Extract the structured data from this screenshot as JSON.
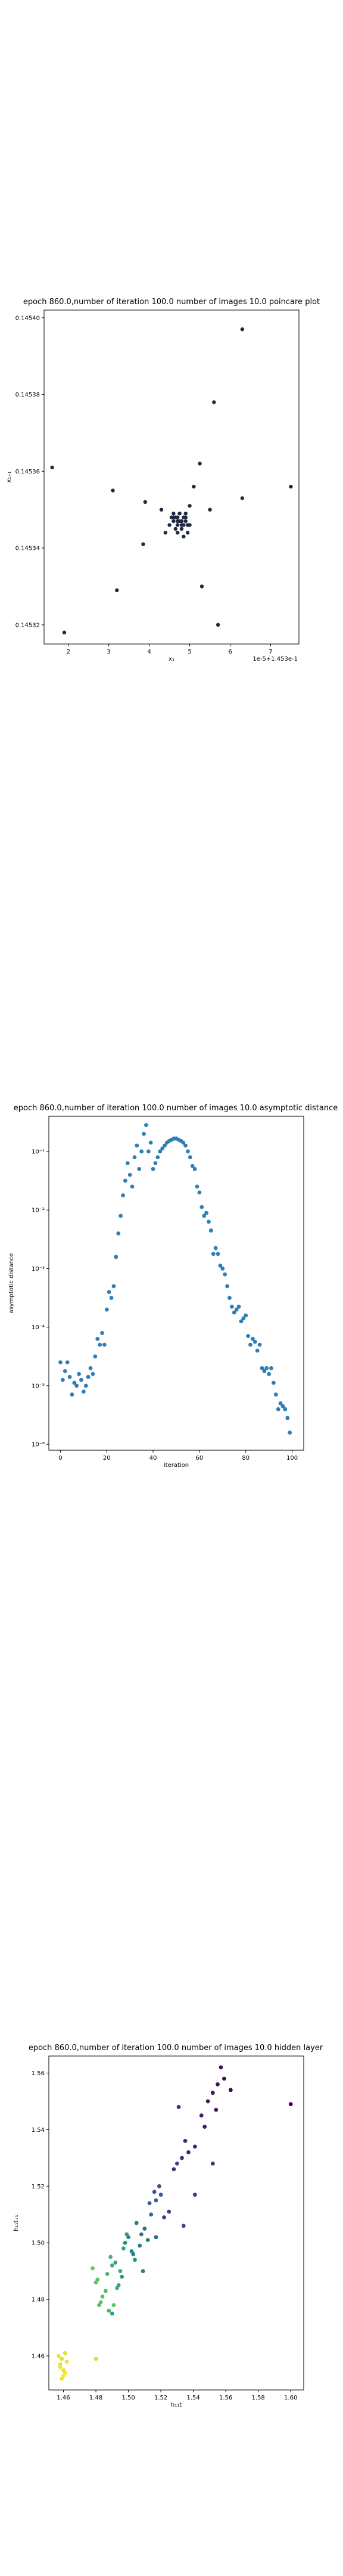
{
  "chart_data": [
    {
      "type": "scatter",
      "title": "epoch 860.0,number of iteration 100.0 number of images 10.0 poincare plot",
      "xlabel": "x₁",
      "ylabel": "x₁₊₁",
      "offset_label": "1e-5+1.453e-1",
      "xticks": [
        "2",
        "3",
        "4",
        "5",
        "6",
        "7"
      ],
      "yticks": [
        "0.14540",
        "0.14538",
        "0.14536",
        "0.14534",
        "0.14532"
      ],
      "xlim": [
        1.4,
        7.7
      ],
      "ylim": [
        0.145315,
        0.145402
      ],
      "marker_color": "#1f2840",
      "x": [
        1.6,
        1.9,
        3.1,
        3.2,
        3.9,
        3.85,
        4.3,
        4.4,
        4.6,
        4.5,
        4.7,
        4.8,
        4.75,
        4.9,
        4.95,
        5.0,
        4.85,
        5.1,
        5.3,
        5.25,
        5.5,
        5.6,
        5.7,
        6.3,
        6.3,
        7.5,
        4.6,
        4.65,
        4.7,
        4.8,
        4.85,
        4.9,
        4.7,
        4.75,
        4.6,
        4.8,
        4.65,
        4.9,
        4.55,
        5.0,
        4.7,
        4.95,
        4.75,
        4.85,
        4.8
      ],
      "y": [
        0.145361,
        0.145318,
        0.145355,
        0.145329,
        0.145352,
        0.145341,
        0.14535,
        0.145344,
        0.145348,
        0.145346,
        0.145347,
        0.145346,
        0.145349,
        0.145348,
        0.145344,
        0.145351,
        0.145343,
        0.145356,
        0.14533,
        0.145362,
        0.14535,
        0.145378,
        0.14532,
        0.145397,
        0.145353,
        0.145356,
        0.145347,
        0.145348,
        0.145348,
        0.145347,
        0.145346,
        0.145347,
        0.145346,
        0.145349,
        0.145349,
        0.145345,
        0.145345,
        0.145349,
        0.145348,
        0.145346,
        0.145344,
        0.145346,
        0.145347,
        0.145348,
        0.145347
      ]
    },
    {
      "type": "scatter",
      "title": "epoch 860.0,number of iteration 100.0 number of images 10.0 asymptotic distance",
      "xlabel": "iteration",
      "ylabel": "asymptotic distance",
      "xticks": [
        "0",
        "20",
        "40",
        "60",
        "80",
        "100"
      ],
      "yticks": [
        "10⁻¹",
        "10⁻²",
        "10⁻³",
        "10⁻⁴",
        "10⁻⁵",
        "10⁻⁶"
      ],
      "xlim": [
        -5,
        105
      ],
      "ylim_log10": [
        -6.1,
        -0.4
      ],
      "yscale": "log",
      "marker_color": "#2f7fb4",
      "x": [
        0,
        1,
        2,
        3,
        4,
        5,
        6,
        7,
        8,
        9,
        10,
        11,
        12,
        13,
        14,
        15,
        16,
        17,
        18,
        19,
        20,
        21,
        22,
        23,
        24,
        25,
        26,
        27,
        28,
        29,
        30,
        31,
        32,
        33,
        34,
        35,
        36,
        37,
        38,
        39,
        40,
        41,
        42,
        43,
        44,
        45,
        46,
        47,
        48,
        49,
        50,
        51,
        52,
        53,
        54,
        55,
        56,
        57,
        58,
        59,
        60,
        61,
        62,
        63,
        64,
        65,
        66,
        67,
        68,
        69,
        70,
        71,
        72,
        73,
        74,
        75,
        76,
        77,
        78,
        79,
        80,
        81,
        82,
        83,
        84,
        85,
        86,
        87,
        88,
        89,
        90,
        91,
        92,
        93,
        94,
        95,
        96,
        97,
        98,
        99
      ],
      "y_log10": [
        -4.6,
        -4.9,
        -4.75,
        -4.6,
        -4.85,
        -5.15,
        -4.95,
        -5.0,
        -4.8,
        -4.9,
        -5.1,
        -5.0,
        -4.85,
        -4.7,
        -4.8,
        -4.5,
        -4.2,
        -4.3,
        -4.1,
        -4.3,
        -3.7,
        -3.4,
        -3.5,
        -3.3,
        -2.8,
        -2.4,
        -2.1,
        -1.75,
        -1.5,
        -1.2,
        -1.4,
        -1.6,
        -1.1,
        -0.9,
        -1.3,
        -1.0,
        -0.7,
        -0.55,
        -1.0,
        -0.85,
        -1.3,
        -1.2,
        -1.1,
        -1.0,
        -0.95,
        -0.9,
        -0.85,
        -0.82,
        -0.8,
        -0.78,
        -0.78,
        -0.8,
        -0.82,
        -0.85,
        -0.9,
        -1.0,
        -1.1,
        -1.25,
        -1.3,
        -1.6,
        -1.7,
        -1.95,
        -2.1,
        -2.05,
        -2.2,
        -2.35,
        -2.75,
        -2.65,
        -2.75,
        -2.95,
        -3.0,
        -3.1,
        -3.3,
        -3.5,
        -3.65,
        -3.75,
        -3.7,
        -3.65,
        -3.9,
        -3.85,
        -3.8,
        -4.15,
        -4.3,
        -4.2,
        -4.25,
        -4.4,
        -4.3,
        -4.7,
        -4.75,
        -4.7,
        -4.8,
        -4.7,
        -4.95,
        -5.15,
        -5.4,
        -5.3,
        -5.35,
        -5.4,
        -5.55,
        -5.8
      ]
    },
    {
      "type": "scatter",
      "title": "epoch 860.0,number of iteration 100.0 number of images 10.0 hidden layer",
      "xlabel": "h₁₁t",
      "ylabel": "h₁₁t₊₁",
      "xticks": [
        "1.46",
        "1.48",
        "1.50",
        "1.52",
        "1.54",
        "1.56",
        "1.58",
        "1.60"
      ],
      "yticks": [
        "1.56",
        "1.54",
        "1.52",
        "1.50",
        "1.48",
        "1.46"
      ],
      "xlim": [
        1.451,
        1.608
      ],
      "ylim": [
        1.448,
        1.566
      ],
      "colormap": "viridis_r",
      "x": [
        1.6,
        1.563,
        1.559,
        1.557,
        1.555,
        1.552,
        1.554,
        1.549,
        1.547,
        1.545,
        1.541,
        1.535,
        1.537,
        1.531,
        1.533,
        1.528,
        1.552,
        1.541,
        1.525,
        1.522,
        1.534,
        1.53,
        1.519,
        1.516,
        1.52,
        1.513,
        1.517,
        1.514,
        1.51,
        1.508,
        1.512,
        1.505,
        1.507,
        1.503,
        1.5,
        1.502,
        1.498,
        1.504,
        1.496,
        1.499,
        1.497,
        1.494,
        1.492,
        1.495,
        1.49,
        1.493,
        1.489,
        1.487,
        1.486,
        1.484,
        1.481,
        1.483,
        1.491,
        1.478,
        1.509,
        1.517,
        1.488,
        1.482,
        1.48,
        1.49,
        1.459,
        1.461,
        1.458,
        1.46,
        1.457,
        1.459,
        1.462,
        1.461,
        1.458,
        1.46,
        1.48
      ],
      "y": [
        1.549,
        1.554,
        1.558,
        1.562,
        1.556,
        1.553,
        1.547,
        1.55,
        1.541,
        1.545,
        1.534,
        1.536,
        1.532,
        1.548,
        1.53,
        1.526,
        1.528,
        1.517,
        1.511,
        1.509,
        1.506,
        1.528,
        1.52,
        1.518,
        1.517,
        1.514,
        1.515,
        1.51,
        1.505,
        1.503,
        1.501,
        1.507,
        1.499,
        1.496,
        1.502,
        1.497,
        1.5,
        1.494,
        1.488,
        1.503,
        1.498,
        1.485,
        1.493,
        1.49,
        1.492,
        1.484,
        1.495,
        1.489,
        1.483,
        1.481,
        1.487,
        1.479,
        1.478,
        1.491,
        1.49,
        1.502,
        1.476,
        1.478,
        1.486,
        1.475,
        1.459,
        1.461,
        1.457,
        1.455,
        1.46,
        1.452,
        1.458,
        1.454,
        1.456,
        1.453,
        1.459
      ],
      "c": [
        0.0,
        0.02,
        0.03,
        0.04,
        0.05,
        0.06,
        0.07,
        0.08,
        0.09,
        0.1,
        0.11,
        0.12,
        0.13,
        0.14,
        0.15,
        0.16,
        0.17,
        0.18,
        0.19,
        0.2,
        0.22,
        0.23,
        0.25,
        0.27,
        0.28,
        0.3,
        0.32,
        0.33,
        0.35,
        0.37,
        0.39,
        0.4,
        0.42,
        0.44,
        0.46,
        0.48,
        0.5,
        0.52,
        0.54,
        0.55,
        0.57,
        0.58,
        0.6,
        0.61,
        0.63,
        0.64,
        0.66,
        0.67,
        0.69,
        0.71,
        0.72,
        0.73,
        0.74,
        0.76,
        0.45,
        0.35,
        0.66,
        0.7,
        0.75,
        0.55,
        0.94,
        0.95,
        0.96,
        0.97,
        0.97,
        0.98,
        0.98,
        0.99,
        0.99,
        1.0,
        0.93
      ]
    }
  ]
}
